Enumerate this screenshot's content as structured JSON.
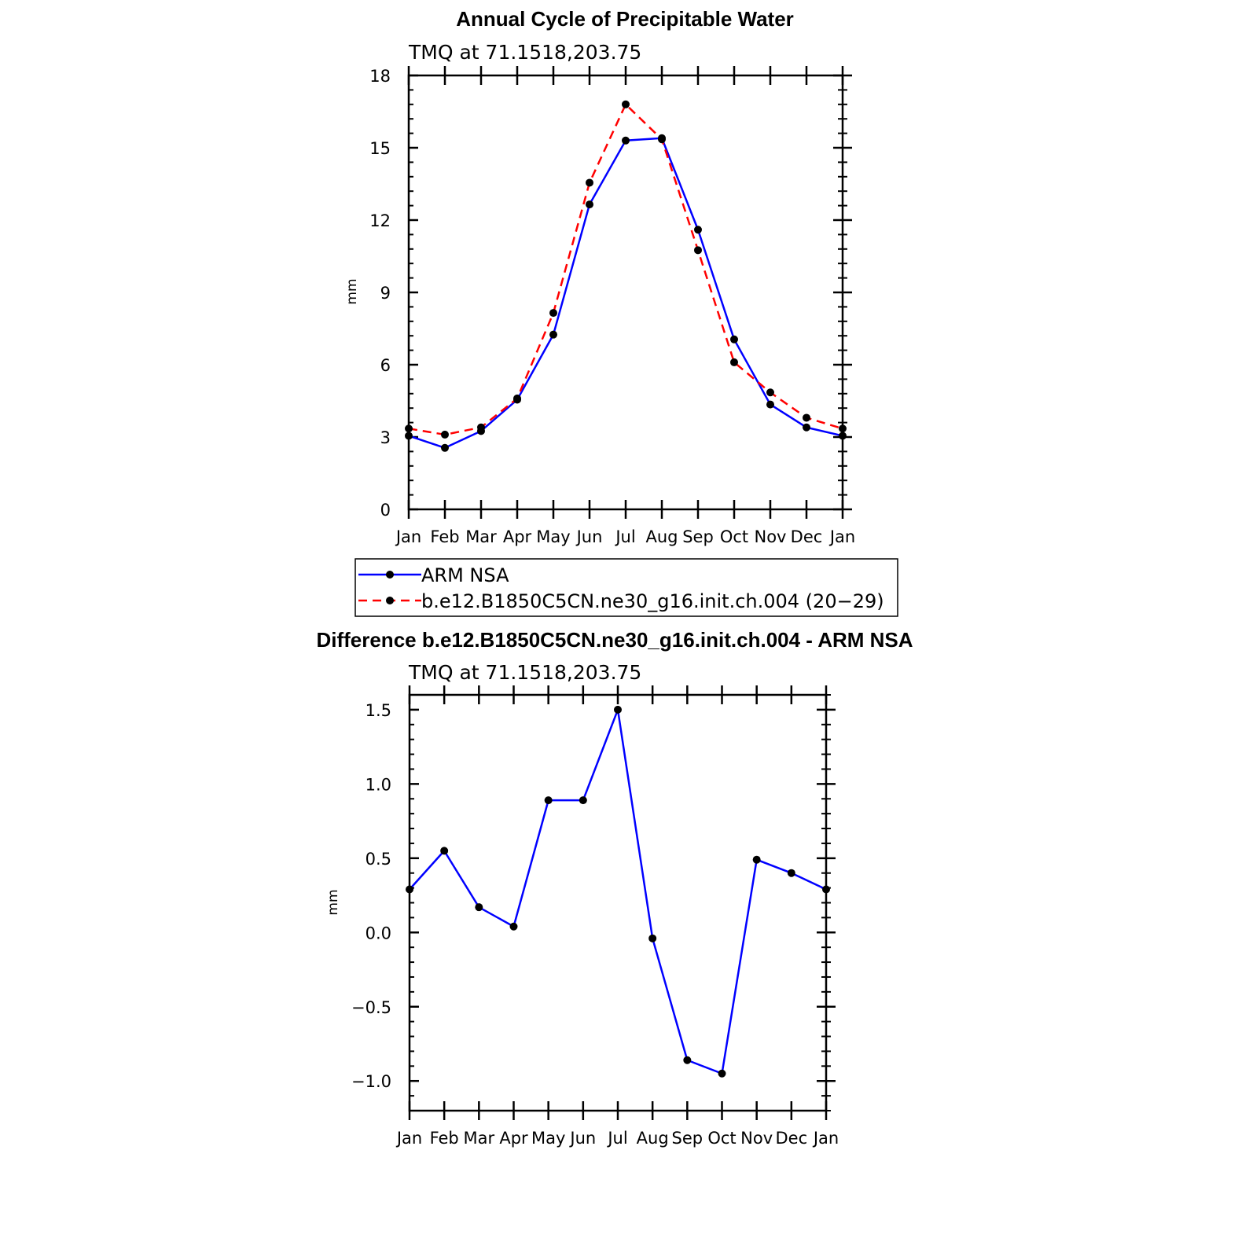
{
  "chart_data": [
    {
      "type": "line",
      "title": "Annual Cycle of Precipitable Water",
      "subtitle": "TMQ at 71.1518,203.75",
      "xlabel": "",
      "ylabel": "mm",
      "categories": [
        "Jan",
        "Feb",
        "Mar",
        "Apr",
        "May",
        "Jun",
        "Jul",
        "Aug",
        "Sep",
        "Oct",
        "Nov",
        "Dec",
        "Jan"
      ],
      "ylim": [
        0,
        18
      ],
      "yticks": [
        0,
        3,
        6,
        9,
        12,
        15,
        18
      ],
      "ytick_labels": [
        "0",
        "3",
        "6",
        "9",
        "12",
        "15",
        "18"
      ],
      "series": [
        {
          "name": "ARM NSA",
          "color": "#0000ff",
          "dash": "solid",
          "values": [
            3.05,
            2.55,
            3.25,
            4.55,
            7.25,
            12.65,
            15.3,
            15.4,
            11.6,
            7.05,
            4.35,
            3.4,
            3.05
          ]
        },
        {
          "name": "b.e12.B1850C5CN.ne30_g16.init.ch.004 (20−29)",
          "color": "#ff0000",
          "dash": "dashed",
          "values": [
            3.35,
            3.1,
            3.4,
            4.6,
            8.15,
            13.55,
            16.8,
            15.35,
            10.75,
            6.1,
            4.85,
            3.8,
            3.35
          ]
        }
      ],
      "legend_position": "bottom"
    },
    {
      "type": "line",
      "title": "Difference b.e12.B1850C5CN.ne30_g16.init.ch.004 - ARM NSA",
      "subtitle": "TMQ at 71.1518,203.75",
      "xlabel": "",
      "ylabel": "mm",
      "categories": [
        "Jan",
        "Feb",
        "Mar",
        "Apr",
        "May",
        "Jun",
        "Jul",
        "Aug",
        "Sep",
        "Oct",
        "Nov",
        "Dec",
        "Jan"
      ],
      "ylim": [
        -1.2,
        1.6
      ],
      "yticks": [
        -1.0,
        -0.5,
        0.0,
        0.5,
        1.0,
        1.5
      ],
      "ytick_labels": [
        "−1.0",
        "−0.5",
        "0.0",
        "0.5",
        "1.0",
        "1.5"
      ],
      "series": [
        {
          "name": "Difference",
          "color": "#0000ff",
          "dash": "solid",
          "values": [
            0.29,
            0.55,
            0.17,
            0.04,
            0.89,
            0.89,
            1.5,
            -0.04,
            -0.86,
            -0.95,
            0.49,
            0.4,
            0.29
          ]
        }
      ]
    }
  ]
}
